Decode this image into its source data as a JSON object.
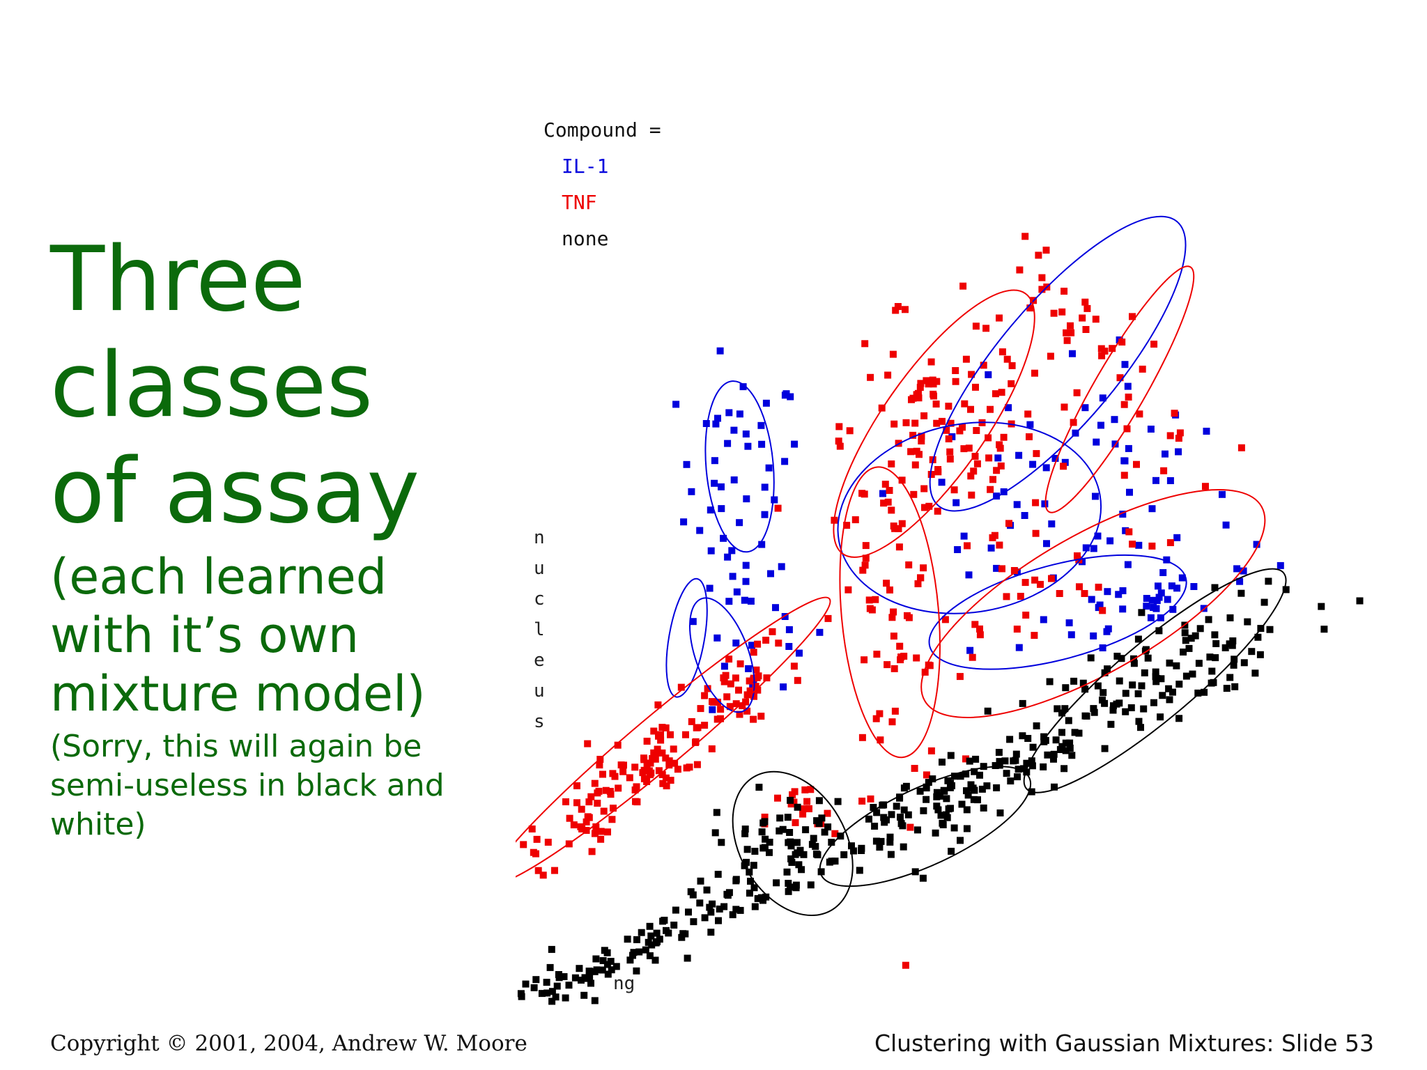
{
  "slide": {
    "title": "Three classes of assay",
    "subtitle": "(each learned with it’s own mixture model)",
    "note": "(Sorry, this will again be semi-useless in black and white)",
    "copyright": "Copyright © 2001, 2004, Andrew W. Moore",
    "footer": "Clustering with Gaussian Mixtures: Slide 53"
  },
  "colors": {
    "title": "#0b6a0b",
    "il1": "#0000dd",
    "tnf": "#ee0000",
    "none": "#000000"
  },
  "chart_data": {
    "type": "scatter",
    "legend_title": "Compound =",
    "legend_position": "top-left",
    "ylabel_letters": [
      "n",
      "u",
      "c",
      "l",
      "e",
      "u",
      "s"
    ],
    "xlabel_fragment": "ng",
    "xlim": [
      0,
      100
    ],
    "ylim": [
      0,
      100
    ],
    "grid": false,
    "series": [
      {
        "name": "IL-1",
        "color": "#0000dd",
        "clusters": [
          {
            "cx": 62,
            "cy": 62,
            "sx": 9,
            "sy": 7,
            "rot": 35,
            "n": 40
          },
          {
            "cx": 23,
            "cy": 62,
            "sx": 3.5,
            "sy": 5,
            "rot": 0,
            "n": 35
          },
          {
            "cx": 24,
            "cy": 43,
            "sx": 3.5,
            "sy": 6,
            "rot": 15,
            "n": 32
          },
          {
            "cx": 61,
            "cy": 53,
            "sx": 9,
            "sy": 8,
            "rot": 10,
            "n": 35
          },
          {
            "cx": 71,
            "cy": 46,
            "sx": 8,
            "sy": 2,
            "rot": 15,
            "n": 30
          }
        ],
        "ellipses": [
          {
            "cx": 59,
            "cy": 73,
            "rx": 21,
            "ry": 7,
            "rot": -50
          },
          {
            "cx": 23,
            "cy": 61,
            "rx": 3.8,
            "ry": 10,
            "rot": -5
          },
          {
            "cx": 17,
            "cy": 41,
            "rx": 2,
            "ry": 7,
            "rot": 10
          },
          {
            "cx": 21,
            "cy": 39,
            "rx": 3,
            "ry": 7,
            "rot": -20
          },
          {
            "cx": 49,
            "cy": 55,
            "rx": 15,
            "ry": 11,
            "rot": -10
          },
          {
            "cx": 59,
            "cy": 44,
            "rx": 15,
            "ry": 5.5,
            "rot": -15
          }
        ]
      },
      {
        "name": "TNF",
        "color": "#ee0000",
        "clusters": [
          {
            "cx": 47,
            "cy": 66,
            "sx": 6,
            "sy": 6,
            "rot": 45,
            "n": 120
          },
          {
            "cx": 64,
            "cy": 74,
            "sx": 3,
            "sy": 7,
            "rot": 35,
            "n": 40
          },
          {
            "cx": 14,
            "cy": 27,
            "sx": 12,
            "sy": 2,
            "rot": 40,
            "n": 160
          },
          {
            "cx": 40,
            "cy": 43,
            "sx": 3,
            "sy": 10,
            "rot": 5,
            "n": 60
          },
          {
            "cx": 56,
            "cy": 46,
            "sx": 10,
            "sy": 2.5,
            "rot": 30,
            "n": 30
          },
          {
            "cx": 30,
            "cy": 20,
            "sx": 2,
            "sy": 2,
            "rot": 0,
            "n": 18
          }
        ],
        "ellipses": [
          {
            "cx": 45,
            "cy": 66,
            "rx": 18,
            "ry": 6,
            "rot": -55
          },
          {
            "cx": 66,
            "cy": 70,
            "rx": 16,
            "ry": 3,
            "rot": -60
          },
          {
            "cx": 14,
            "cy": 29,
            "rx": 25,
            "ry": 3,
            "rot": -40
          },
          {
            "cx": 40,
            "cy": 44,
            "rx": 5.5,
            "ry": 17,
            "rot": -5
          },
          {
            "cx": 63,
            "cy": 45,
            "rx": 22,
            "ry": 8,
            "rot": -30
          }
        ]
      },
      {
        "name": "none",
        "color": "#000000",
        "clusters": [
          {
            "cx": 50,
            "cy": 25,
            "sx": 20,
            "sy": 1.8,
            "rot": 25,
            "n": 120
          },
          {
            "cx": 67,
            "cy": 35,
            "sx": 9,
            "sy": 3,
            "rot": 30,
            "n": 100
          },
          {
            "cx": 10,
            "cy": 4,
            "sx": 12,
            "sy": 1.4,
            "rot": 28,
            "n": 110
          },
          {
            "cx": 28,
            "cy": 17,
            "sx": 4,
            "sy": 3,
            "rot": 0,
            "n": 50
          },
          {
            "cx": 44,
            "cy": 20,
            "sx": 7,
            "sy": 2,
            "rot": 25,
            "n": 50
          }
        ],
        "ellipses": [
          {
            "cx": 70,
            "cy": 36,
            "rx": 19,
            "ry": 4.5,
            "rot": -40
          },
          {
            "cx": 29,
            "cy": 17,
            "rx": 6,
            "ry": 9,
            "rot": -30
          },
          {
            "cx": 44,
            "cy": 19,
            "rx": 13,
            "ry": 4.5,
            "rot": -25
          }
        ]
      }
    ]
  }
}
